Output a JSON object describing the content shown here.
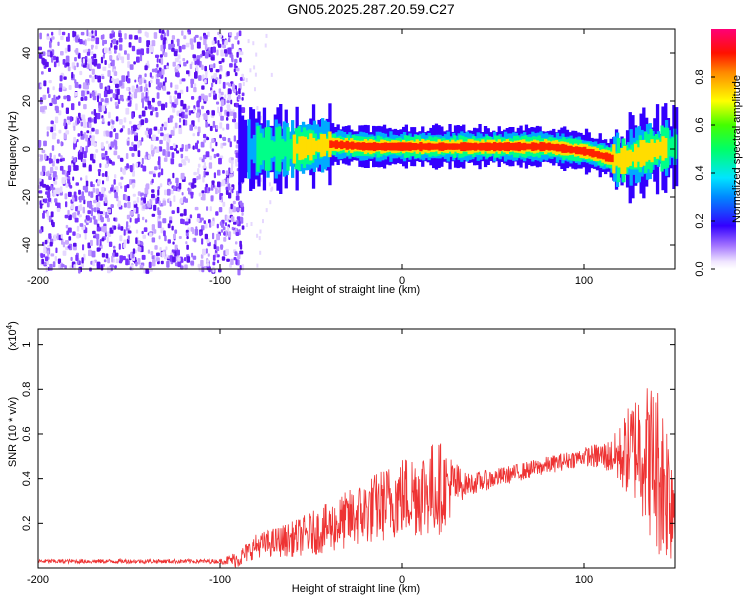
{
  "title": "GN05.2025.287.20.59.C27",
  "chart_data": [
    {
      "type": "heatmap",
      "name": "spectrogram",
      "xlabel": "Height of straight line (km)",
      "ylabel": "Frequency (Hz)",
      "xlim": [
        -200,
        150
      ],
      "ylim": [
        -50,
        50
      ],
      "xticks": [
        -200,
        -100,
        0,
        100
      ],
      "yticks": [
        -40,
        -20,
        0,
        20,
        40
      ],
      "noise_region_x": [
        -200,
        -88
      ],
      "signal_center_hz": [
        [
          -90,
          0
        ],
        [
          -60,
          0
        ],
        [
          -40,
          2
        ],
        [
          -20,
          1
        ],
        [
          0,
          1
        ],
        [
          20,
          1
        ],
        [
          40,
          1
        ],
        [
          60,
          1
        ],
        [
          80,
          1
        ],
        [
          90,
          0
        ],
        [
          100,
          -1
        ],
        [
          110,
          -3
        ],
        [
          120,
          -5
        ],
        [
          130,
          -2
        ],
        [
          140,
          0
        ],
        [
          150,
          1
        ]
      ],
      "colorbar": {
        "label": "Normalized spectral amplitude",
        "range": [
          0.0,
          1.0
        ],
        "ticks": [
          0.0,
          0.2,
          0.4,
          0.6,
          0.8
        ]
      }
    },
    {
      "type": "line",
      "name": "snr",
      "xlabel": "Height of straight line (km)",
      "ylabel": "SNR (10 * v/v)",
      "y_multiplier": "(x10^4)",
      "multiplier_base": "(x10",
      "multiplier_exp": "4",
      "multiplier_close": ")",
      "xlim": [
        -200,
        150
      ],
      "ylim": [
        0,
        1.07
      ],
      "xticks": [
        -200,
        -100,
        0,
        100
      ],
      "yticks": [
        0.2,
        0.4,
        0.6,
        0.8,
        1.0
      ],
      "color": "#ee3333",
      "envelope": [
        [
          -200,
          0.03
        ],
        [
          -150,
          0.03
        ],
        [
          -100,
          0.03
        ],
        [
          -90,
          0.04
        ],
        [
          -80,
          0.1
        ],
        [
          -60,
          0.13
        ],
        [
          -40,
          0.18
        ],
        [
          -20,
          0.25
        ],
        [
          0,
          0.32
        ],
        [
          20,
          0.36
        ],
        [
          40,
          0.38
        ],
        [
          60,
          0.42
        ],
        [
          80,
          0.46
        ],
        [
          100,
          0.5
        ],
        [
          110,
          0.5
        ],
        [
          120,
          0.5
        ],
        [
          130,
          0.55
        ],
        [
          140,
          0.45
        ],
        [
          150,
          0.3
        ]
      ],
      "spread": [
        [
          -200,
          0.01
        ],
        [
          -100,
          0.01
        ],
        [
          -90,
          0.04
        ],
        [
          -60,
          0.08
        ],
        [
          -20,
          0.15
        ],
        [
          20,
          0.22
        ],
        [
          35,
          0.05
        ],
        [
          60,
          0.04
        ],
        [
          100,
          0.04
        ],
        [
          115,
          0.08
        ],
        [
          130,
          0.28
        ],
        [
          140,
          0.4
        ],
        [
          150,
          0.3
        ]
      ]
    }
  ]
}
